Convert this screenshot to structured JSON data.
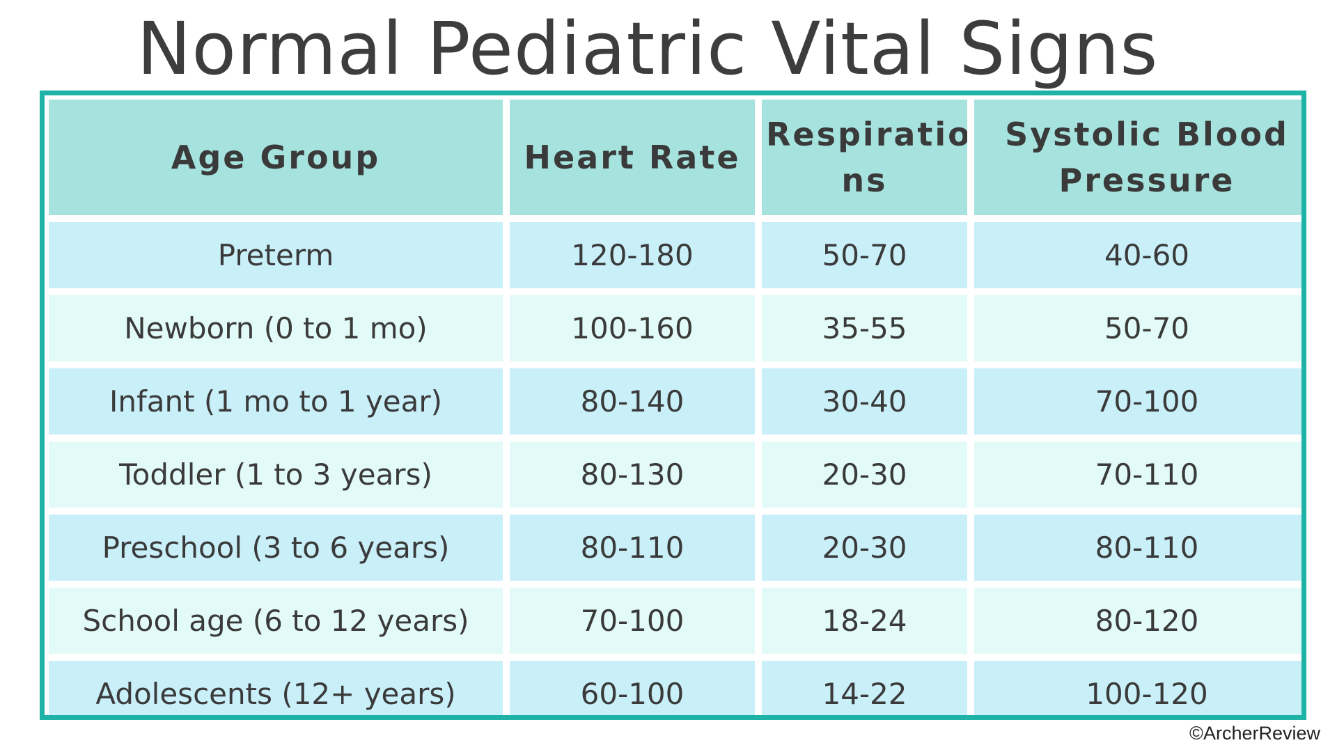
{
  "title": "Normal Pediatric Vital Signs",
  "table": {
    "headers": [
      [
        "Age Group"
      ],
      [
        "Heart Rate"
      ],
      [
        "Respiratio",
        "ns"
      ],
      [
        "Systolic Blood",
        "Pressure"
      ]
    ],
    "rows": [
      [
        "Preterm",
        "120-180",
        "50-70",
        "40-60"
      ],
      [
        "Newborn (0 to 1 mo)",
        "100-160",
        "35-55",
        "50-70"
      ],
      [
        "Infant (1 mo to 1 year)",
        "80-140",
        "30-40",
        "70-100"
      ],
      [
        "Toddler (1 to 3 years)",
        "80-130",
        "20-30",
        "70-110"
      ],
      [
        "Preschool (3 to 6 years)",
        "80-110",
        "20-30",
        "80-110"
      ],
      [
        "School age (6 to 12 years)",
        "70-100",
        "18-24",
        "80-120"
      ],
      [
        "Adolescents (12+ years)",
        "60-100",
        "14-22",
        "100-120"
      ]
    ]
  },
  "copyright": "©ArcherReview",
  "colors": {
    "border": "#1fb2a6",
    "header_bg": "#a6e3df",
    "row_odd_bg": "#c9eff9",
    "row_even_bg": "#e3fbf8",
    "text": "#3a3a3a"
  }
}
